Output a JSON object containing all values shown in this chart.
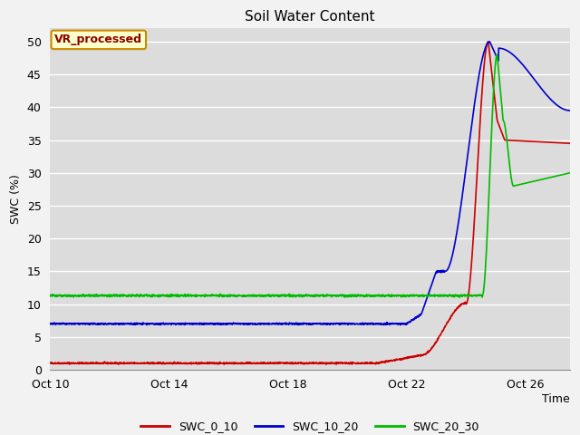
{
  "title": "Soil Water Content",
  "ylabel": "SWC (%)",
  "xlabel": "Time",
  "ylim": [
    0,
    52
  ],
  "yticks": [
    0,
    5,
    10,
    15,
    20,
    25,
    30,
    35,
    40,
    45,
    50
  ],
  "background_color": "#dcdcdc",
  "grid_color": "#ffffff",
  "legend_label": "VR_processed",
  "legend_box_color": "#ffffcc",
  "legend_box_edge": "#cc8800",
  "series": {
    "SWC_0_10": {
      "color": "#cc0000"
    },
    "SWC_10_20": {
      "color": "#0000cc"
    },
    "SWC_20_30": {
      "color": "#00bb00"
    }
  },
  "xtick_labels": [
    "Oct 10",
    "Oct 14",
    "Oct 18",
    "Oct 22",
    "Oct 26"
  ],
  "xtick_days": [
    10,
    14,
    18,
    22,
    26
  ],
  "xlim": [
    10,
    27.5
  ]
}
